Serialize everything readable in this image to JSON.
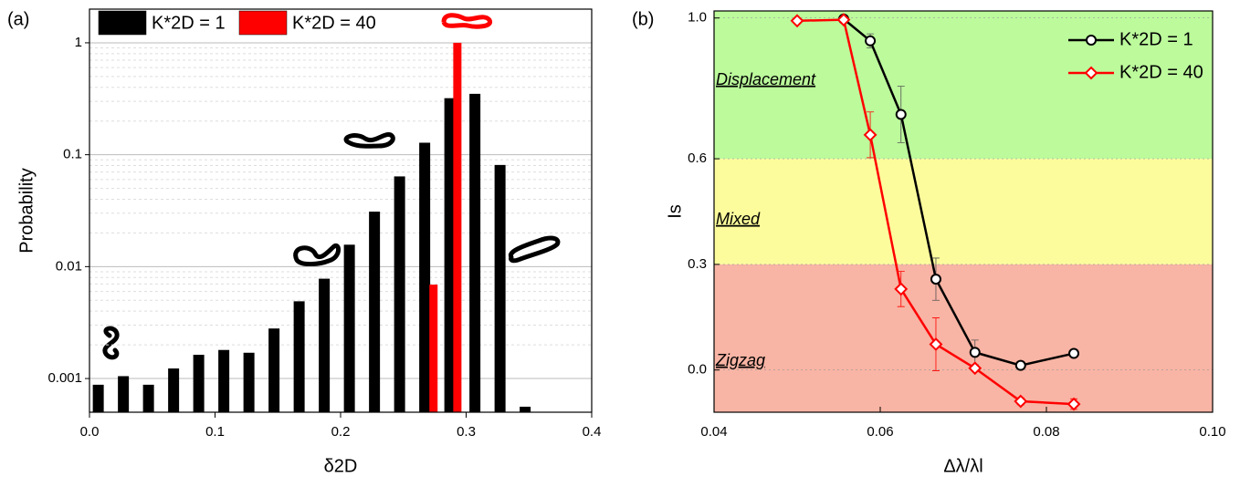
{
  "chart_data": [
    {
      "type": "bar",
      "panel_label": "(a)",
      "x_label": "δ2D",
      "y_label": "Probability",
      "log_y": true,
      "grid": true,
      "minor_grid": true,
      "legend": "top-left",
      "xlim": [
        0,
        0.4
      ],
      "xticks": [
        {
          "value": 0,
          "label": "0.0"
        },
        0.1,
        0.2,
        0.3,
        0.4
      ],
      "ylim": [
        0.0005,
        2
      ],
      "yticks": [
        0.001,
        0.01,
        0.1,
        1
      ],
      "series": [
        {
          "name": "K*2D = 1",
          "color": "#000000",
          "x": [
            0.007,
            0.027,
            0.047,
            0.067,
            0.087,
            0.107,
            0.127,
            0.147,
            0.167,
            0.187,
            0.207,
            0.227,
            0.247,
            0.267,
            0.287,
            0.307,
            0.327,
            0.347
          ],
          "values": [
            0.00088,
            0.00105,
            0.00088,
            0.00123,
            0.00163,
            0.0018,
            0.0017,
            0.0028,
            0.0049,
            0.0078,
            0.0157,
            0.031,
            0.064,
            0.128,
            0.32,
            0.35,
            0.081,
            0.00056
          ]
        },
        {
          "name": "K*2D = 40",
          "color": "#ff0000",
          "x": [
            0.274,
            0.293
          ],
          "values": [
            0.0069,
            1
          ]
        }
      ]
    },
    {
      "type": "line",
      "panel_label": "(b)",
      "x_label": "Δλ/λl",
      "y_label": "Is",
      "grid": false,
      "legend": "top-right",
      "xlim": [
        0.04,
        0.1
      ],
      "xticks": [
        0.04,
        0.06,
        0.08,
        {
          "value": 0.1,
          "label": "0.10"
        }
      ],
      "ylim": [
        -0.12,
        1.02
      ],
      "yticks": [
        {
          "value": 0,
          "label": "0.0"
        },
        0.3,
        0.6,
        {
          "value": 1,
          "label": "1.0"
        }
      ],
      "regions": [
        {
          "label": "Displacement",
          "color": "#bcfa9c",
          "range": [
            0.6,
            1.02
          ]
        },
        {
          "label": "Mixed",
          "color": "#fcfc9c",
          "range": [
            0.3,
            0.6
          ]
        },
        {
          "label": "Zigzag",
          "color": "#f8b4a4",
          "range": [
            -0.12,
            0.3
          ]
        }
      ],
      "series": [
        {
          "name": "K*2D = 1",
          "color": "#000000",
          "marker": "circle",
          "x": [
            0.0556,
            0.0588,
            0.0625,
            0.0667,
            0.0714,
            0.0769,
            0.0833
          ],
          "values": [
            0.997,
            0.935,
            0.726,
            0.258,
            0.05,
            0.013,
            0.047
          ],
          "errors": [
            null,
            0.02,
            0.08,
            0.06,
            0.035,
            null,
            null
          ]
        },
        {
          "name": "K*2D = 40",
          "color": "#ff0000",
          "marker": "diamond",
          "x": [
            0.05,
            0.0556,
            0.0588,
            0.0625,
            0.0667,
            0.0714,
            0.0769,
            0.0833
          ],
          "values": [
            0.992,
            0.995,
            0.668,
            0.23,
            0.073,
            0.005,
            -0.089,
            -0.097
          ],
          "errors": [
            null,
            null,
            0.065,
            0.05,
            0.075,
            null,
            0.01,
            0.015
          ]
        }
      ]
    }
  ]
}
